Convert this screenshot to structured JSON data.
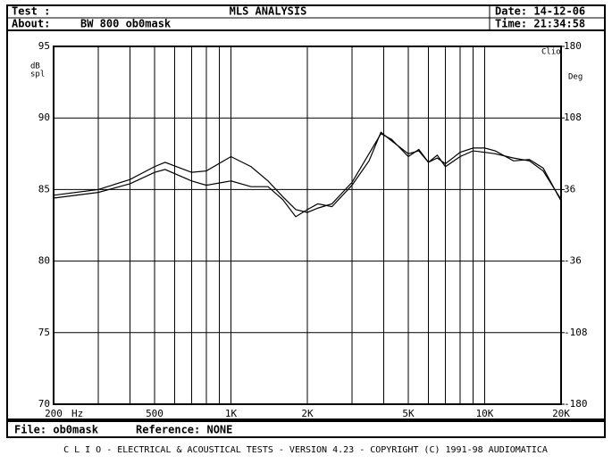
{
  "header": {
    "test": "Test :",
    "title": "MLS ANALYSIS",
    "date": "Date: 14-12-06",
    "about": "About:",
    "about_value": "BW 800 ob0mask",
    "time": "Time: 21:34:58"
  },
  "footer": {
    "file": "File: ob0mask",
    "reference": "Reference: NONE",
    "banner": "C L I O  -  ELECTRICAL & ACOUSTICAL TESTS  -  VERSION 4.23  -  COPYRIGHT (C) 1991-98 AUDIOMATICA"
  },
  "chart_data": {
    "type": "line",
    "ylabel": [
      "dB",
      "spl"
    ],
    "y2label": "Deg",
    "xlabel": "Hz",
    "annotation": "Clio",
    "xscale": "log",
    "grid": true,
    "x": [
      200,
      300,
      400,
      500,
      550,
      700,
      800,
      1000,
      1200,
      1400,
      1600,
      1800,
      2000,
      2200,
      2500,
      3000,
      3500,
      3900,
      4300,
      5000,
      5500,
      6000,
      6500,
      7000,
      8000,
      9000,
      10000,
      11000,
      13000,
      15000,
      17000,
      20000
    ],
    "series": [
      {
        "color": "#000000",
        "values": [
          84.6,
          85.0,
          85.7,
          86.6,
          86.9,
          86.2,
          86.3,
          87.3,
          86.6,
          85.6,
          84.5,
          83.6,
          83.4,
          83.7,
          84.0,
          85.5,
          87.5,
          88.9,
          88.5,
          87.3,
          87.8,
          86.9,
          87.4,
          86.6,
          87.3,
          87.7,
          87.6,
          87.5,
          87.2,
          87.0,
          86.3,
          84.3
        ]
      },
      {
        "color": "#000000",
        "values": [
          84.4,
          84.8,
          85.4,
          86.2,
          86.4,
          85.6,
          85.3,
          85.6,
          85.2,
          85.2,
          84.3,
          83.1,
          83.6,
          84.0,
          83.8,
          85.3,
          87.0,
          89.0,
          88.4,
          87.5,
          87.7,
          86.9,
          87.2,
          86.8,
          87.6,
          87.9,
          87.9,
          87.7,
          87.0,
          87.1,
          86.5,
          84.2
        ]
      }
    ],
    "xlim": [
      200,
      20000
    ],
    "xticks": [
      200,
      500,
      {
        "value": 1000,
        "label": "1K"
      },
      {
        "value": 2000,
        "label": "2K"
      },
      {
        "value": 5000,
        "label": "5K"
      },
      {
        "value": 10000,
        "label": "10K"
      },
      {
        "value": 20000,
        "label": "20K"
      }
    ],
    "xminorticks": [
      300,
      400,
      600,
      700,
      800,
      900,
      3000,
      4000,
      6000,
      7000,
      8000,
      9000
    ],
    "ylim": [
      70,
      95
    ],
    "yticks": [
      95,
      90,
      85,
      80,
      75,
      70
    ],
    "y2lim": [
      -180,
      180
    ],
    "y2ticks": [
      180,
      108,
      36,
      -36,
      -108,
      -180
    ]
  }
}
